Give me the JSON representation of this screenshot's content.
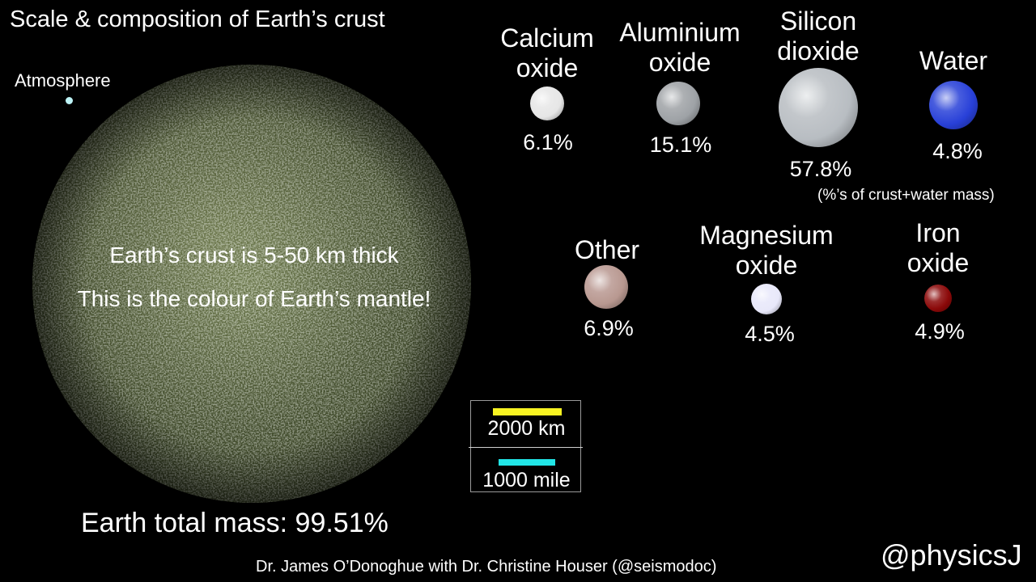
{
  "title": "Scale & composition of Earth’s crust",
  "atmosphere": {
    "label": "Atmosphere",
    "color": "#bdf3f6"
  },
  "earth": {
    "line1": "Earth’s crust is 5-50 km thick",
    "line2": "This is the colour of Earth’s mantle!",
    "total_mass": "Earth total mass: 99.51%",
    "color": "#4e5a35"
  },
  "components": [
    {
      "id": "calcium-oxide",
      "name_line1": "Calcium",
      "name_line2": "oxide",
      "percent": "6.1%",
      "color": "#e6e6e6"
    },
    {
      "id": "aluminium-oxide",
      "name_line1": "Aluminium",
      "name_line2": "oxide",
      "percent": "15.1%",
      "color": "#9ea2a6"
    },
    {
      "id": "silicon-dioxide",
      "name_line1": "Silicon",
      "name_line2": "dioxide",
      "percent": "57.8%",
      "color": "#b8bdc2"
    },
    {
      "id": "water",
      "name_line1": "Water",
      "name_line2": "",
      "percent": "4.8%",
      "color": "#2840d8"
    },
    {
      "id": "other",
      "name_line1": "Other",
      "name_line2": "",
      "percent": "6.9%",
      "color": "#b89890"
    },
    {
      "id": "magnesium-oxide",
      "name_line1": "Magnesium",
      "name_line2": "oxide",
      "percent": "4.5%",
      "color": "#e8e8fa"
    },
    {
      "id": "iron-oxide",
      "name_line1": "Iron",
      "name_line2": "oxide",
      "percent": "4.9%",
      "color": "#8a0808"
    }
  ],
  "note": "(%’s of crust+water mass)",
  "scale": {
    "km_label": "2000 km",
    "mile_label": "1000 mile",
    "km_color": "#f7f321",
    "mile_color": "#21e5e6"
  },
  "credit": "Dr. James O’Donoghue with Dr. Christine Houser (@seismodoc)",
  "handle": "@physicsJ"
}
